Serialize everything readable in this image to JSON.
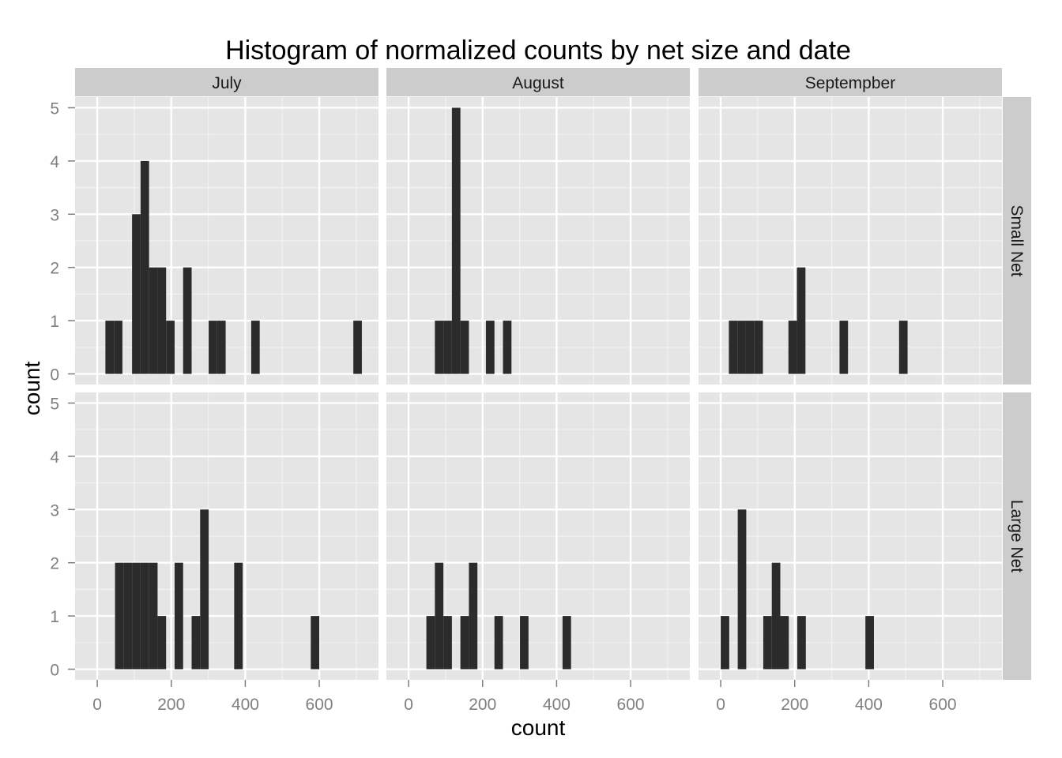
{
  "chart_data": {
    "type": "bar",
    "title": "Histogram of normalized counts by net size and date",
    "xlabel": "count",
    "ylabel": "count",
    "xlim": [
      -60,
      760
    ],
    "ylim": [
      -0.2,
      5.2
    ],
    "x_ticks": [
      0,
      200,
      400,
      600
    ],
    "y_ticks": [
      0,
      1,
      2,
      3,
      4,
      5
    ],
    "bin_width": 23,
    "columns": [
      "July",
      "August",
      "Septempber"
    ],
    "rows": [
      "Small Net",
      "Large Net"
    ],
    "grid": true,
    "colors": {
      "panel_bg": "#e5e5e5",
      "strip_bg": "#cccccc",
      "grid": "#ffffff",
      "bar": "#2b2b2b"
    },
    "panels": [
      {
        "column": "July",
        "row": "Small Net",
        "bins": [
          {
            "x": 22,
            "count": 1
          },
          {
            "x": 45,
            "count": 1
          },
          {
            "x": 94,
            "count": 3
          },
          {
            "x": 117,
            "count": 4
          },
          {
            "x": 140,
            "count": 2
          },
          {
            "x": 163,
            "count": 2
          },
          {
            "x": 186,
            "count": 1
          },
          {
            "x": 232,
            "count": 2
          },
          {
            "x": 301,
            "count": 1
          },
          {
            "x": 324,
            "count": 1
          },
          {
            "x": 416,
            "count": 1
          },
          {
            "x": 692,
            "count": 1
          }
        ]
      },
      {
        "column": "August",
        "row": "Small Net",
        "bins": [
          {
            "x": 71,
            "count": 1
          },
          {
            "x": 94,
            "count": 1
          },
          {
            "x": 117,
            "count": 5
          },
          {
            "x": 140,
            "count": 1
          },
          {
            "x": 209,
            "count": 1
          },
          {
            "x": 255,
            "count": 1
          }
        ]
      },
      {
        "column": "Septempber",
        "row": "Small Net",
        "bins": [
          {
            "x": 22,
            "count": 1
          },
          {
            "x": 45,
            "count": 1
          },
          {
            "x": 68,
            "count": 1
          },
          {
            "x": 91,
            "count": 1
          },
          {
            "x": 183,
            "count": 1
          },
          {
            "x": 206,
            "count": 2
          },
          {
            "x": 321,
            "count": 1
          },
          {
            "x": 482,
            "count": 1
          }
        ]
      },
      {
        "column": "July",
        "row": "Large Net",
        "bins": [
          {
            "x": 48,
            "count": 2
          },
          {
            "x": 71,
            "count": 2
          },
          {
            "x": 94,
            "count": 2
          },
          {
            "x": 117,
            "count": 2
          },
          {
            "x": 140,
            "count": 2
          },
          {
            "x": 163,
            "count": 1
          },
          {
            "x": 209,
            "count": 2
          },
          {
            "x": 255,
            "count": 1
          },
          {
            "x": 278,
            "count": 3
          },
          {
            "x": 370,
            "count": 2
          },
          {
            "x": 577,
            "count": 1
          }
        ]
      },
      {
        "column": "August",
        "row": "Large Net",
        "bins": [
          {
            "x": 48,
            "count": 1
          },
          {
            "x": 71,
            "count": 2
          },
          {
            "x": 94,
            "count": 1
          },
          {
            "x": 140,
            "count": 1
          },
          {
            "x": 163,
            "count": 2
          },
          {
            "x": 232,
            "count": 1
          },
          {
            "x": 301,
            "count": 1
          },
          {
            "x": 416,
            "count": 1
          }
        ]
      },
      {
        "column": "Septempber",
        "row": "Large Net",
        "bins": [
          {
            "x": 0,
            "count": 1
          },
          {
            "x": 46,
            "count": 3
          },
          {
            "x": 115,
            "count": 1
          },
          {
            "x": 138,
            "count": 2
          },
          {
            "x": 161,
            "count": 1
          },
          {
            "x": 207,
            "count": 1
          },
          {
            "x": 391,
            "count": 1
          }
        ]
      }
    ]
  }
}
